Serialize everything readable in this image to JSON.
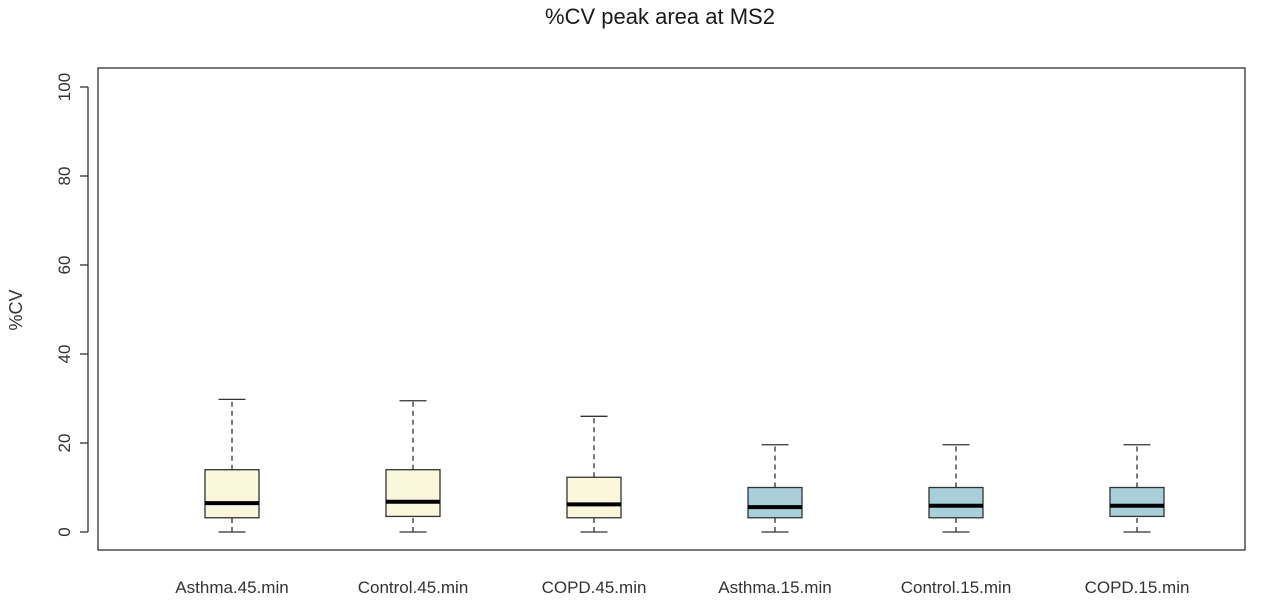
{
  "chart_data": {
    "type": "boxplot",
    "title": "%CV peak area at MS2",
    "xlabel": "",
    "ylabel": "%CV",
    "ylim": [
      -4,
      104
    ],
    "yticks": [
      0,
      20,
      40,
      60,
      80,
      100
    ],
    "grid": false,
    "categories": [
      "Asthma.45.min",
      "Control.45.min",
      "COPD.45.min",
      "Asthma.15.min",
      "Control.15.min",
      "COPD.15.min"
    ],
    "boxes": [
      {
        "min": 0,
        "q1": 3.2,
        "median": 6.5,
        "q3": 14.0,
        "max": 29.8,
        "color": "#faf7dc"
      },
      {
        "min": 0,
        "q1": 3.5,
        "median": 6.8,
        "q3": 14.0,
        "max": 29.5,
        "color": "#faf7dc"
      },
      {
        "min": 0,
        "q1": 3.2,
        "median": 6.2,
        "q3": 12.3,
        "max": 26.0,
        "color": "#faf7dc"
      },
      {
        "min": 0,
        "q1": 3.2,
        "median": 5.6,
        "q3": 10.0,
        "max": 19.6,
        "color": "#a9d0da"
      },
      {
        "min": 0,
        "q1": 3.2,
        "median": 5.9,
        "q3": 10.0,
        "max": 19.6,
        "color": "#a9d0da"
      },
      {
        "min": 0,
        "q1": 3.5,
        "median": 5.9,
        "q3": 10.0,
        "max": 19.6,
        "color": "#a9d0da"
      }
    ]
  }
}
